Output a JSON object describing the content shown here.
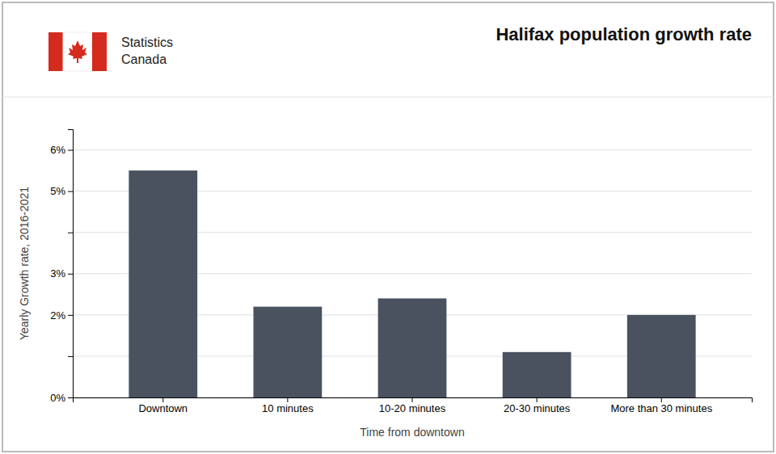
{
  "chart_data": {
    "type": "bar",
    "title": "Halifax population growth rate",
    "annotations": [
      "Statistics\nCanada"
    ],
    "xlabel": "Time from downtown",
    "ylabel": "Yearly Growth rate, 2016-2021",
    "categories": [
      "Downtown",
      "10 minutes",
      "10-20 minutes",
      "20-30 minutes",
      "More than 30 minutes"
    ],
    "values": [
      0.055,
      0.022,
      0.024,
      0.011,
      0.02
    ],
    "color": "#4a5260",
    "ylim": [
      0,
      0.065
    ],
    "yticks": [
      {
        "value": 0.0,
        "label": "0%"
      },
      {
        "value": 0.01,
        "label": null
      },
      {
        "value": 0.02,
        "label": "2%"
      },
      {
        "value": 0.03,
        "label": "3%"
      },
      {
        "value": 0.04,
        "label": null
      },
      {
        "value": 0.05,
        "label": "5%"
      },
      {
        "value": 0.06,
        "label": "6%"
      }
    ],
    "grid": true
  }
}
